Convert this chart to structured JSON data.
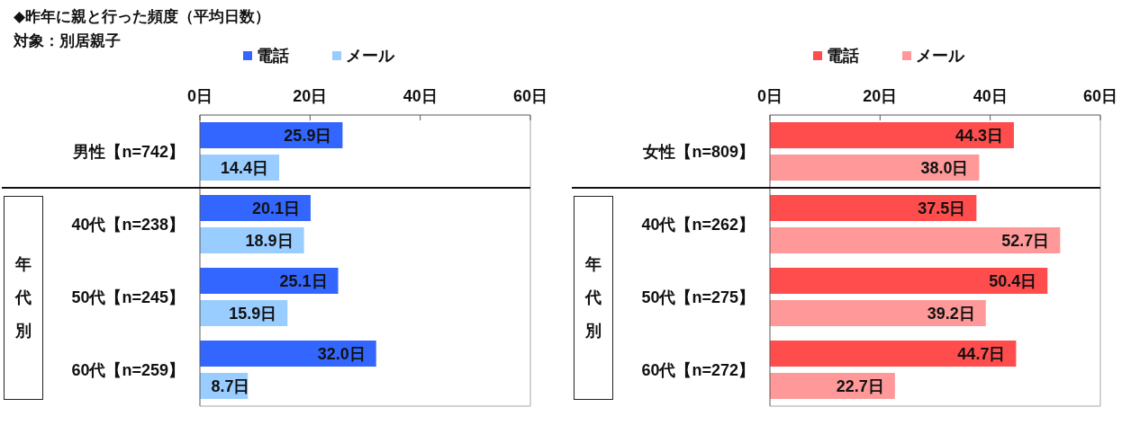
{
  "chart_data": [
    {
      "type": "bar",
      "orientation": "horizontal",
      "title": "◆昨年に親と行った頻度（平均日数）",
      "subtitle": "対象：別居親子",
      "categories": [
        "男性【n=742】",
        "40代【n=238】",
        "50代【n=245】",
        "60代【n=259】"
      ],
      "series": [
        {
          "name": "電話",
          "color": "#3366ff",
          "values": [
            25.9,
            20.1,
            25.1,
            32.0
          ],
          "value_labels": [
            "25.9日",
            "20.1日",
            "25.1日",
            "32.0日"
          ]
        },
        {
          "name": "メール",
          "color": "#99ccff",
          "values": [
            14.4,
            18.9,
            15.9,
            8.7
          ],
          "value_labels": [
            "14.4日",
            "18.9日",
            "15.9日",
            "8.7日"
          ]
        }
      ],
      "xlim": [
        0,
        60
      ],
      "xticks": [
        {
          "value": 0,
          "label": "0日"
        },
        {
          "value": 20,
          "label": "20日"
        },
        {
          "value": 40,
          "label": "40日"
        },
        {
          "value": 60,
          "label": "60日"
        }
      ],
      "legend": "top",
      "annotations": [
        "年代別"
      ]
    },
    {
      "type": "bar",
      "orientation": "horizontal",
      "categories": [
        "女性【n=809】",
        "40代【n=262】",
        "50代【n=275】",
        "60代【n=272】"
      ],
      "series": [
        {
          "name": "電話",
          "color": "#ff4d4d",
          "values": [
            44.3,
            37.5,
            50.4,
            44.7
          ],
          "value_labels": [
            "44.3日",
            "37.5日",
            "50.4日",
            "44.7日"
          ]
        },
        {
          "name": "メール",
          "color": "#ff9999",
          "values": [
            38.0,
            52.7,
            39.2,
            22.7
          ],
          "value_labels": [
            "38.0日",
            "52.7日",
            "39.2日",
            "22.7日"
          ]
        }
      ],
      "xlim": [
        0,
        60
      ],
      "xticks": [
        {
          "value": 0,
          "label": "0日"
        },
        {
          "value": 20,
          "label": "20日"
        },
        {
          "value": 40,
          "label": "40日"
        },
        {
          "value": 60,
          "label": "60日"
        }
      ],
      "legend": "top",
      "annotations": [
        "年代別"
      ]
    }
  ]
}
